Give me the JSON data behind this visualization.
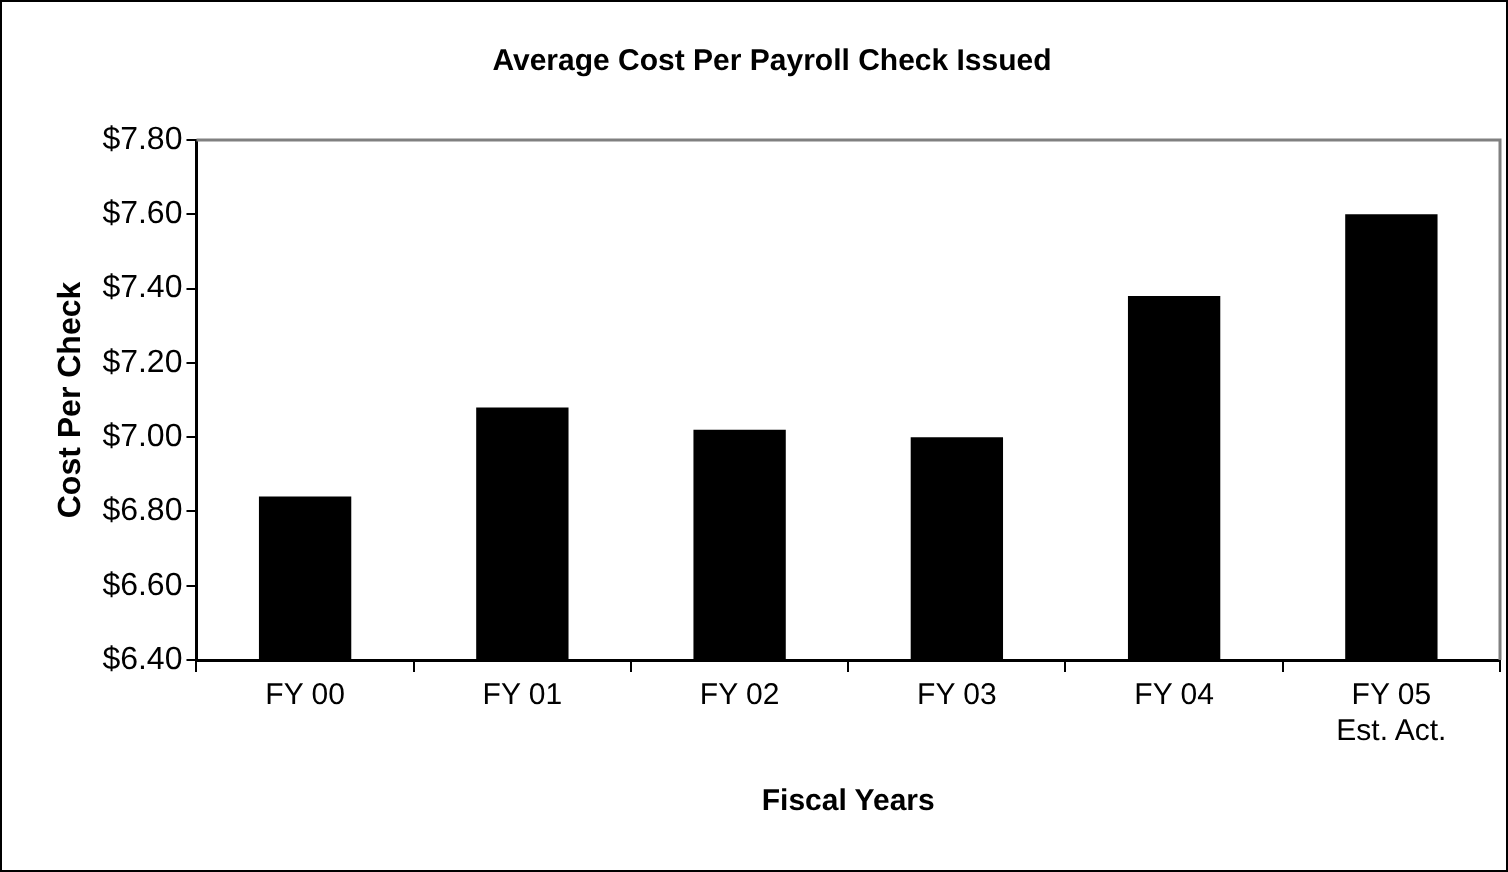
{
  "chart_data": {
    "type": "bar",
    "title": "Average Cost Per Payroll Check Issued",
    "xlabel": "Fiscal Years",
    "ylabel": "Cost Per Check",
    "categories": [
      "FY 00",
      "FY 01",
      "FY 02",
      "FY 03",
      "FY 04",
      "FY 05\nEst. Act."
    ],
    "values": [
      6.84,
      7.08,
      7.02,
      7.0,
      7.38,
      7.6
    ],
    "color": "#000000",
    "ylim": [
      6.4,
      7.8
    ],
    "yticks": [
      {
        "value": 6.4,
        "label": "$6.40"
      },
      {
        "value": 6.6,
        "label": "$6.60"
      },
      {
        "value": 6.8,
        "label": "$6.80"
      },
      {
        "value": 7.0,
        "label": "$7.00"
      },
      {
        "value": 7.2,
        "label": "$7.20"
      },
      {
        "value": 7.4,
        "label": "$7.40"
      },
      {
        "value": 7.6,
        "label": "$7.60"
      },
      {
        "value": 7.8,
        "label": "$7.80"
      }
    ],
    "grid": false,
    "legend": false
  }
}
